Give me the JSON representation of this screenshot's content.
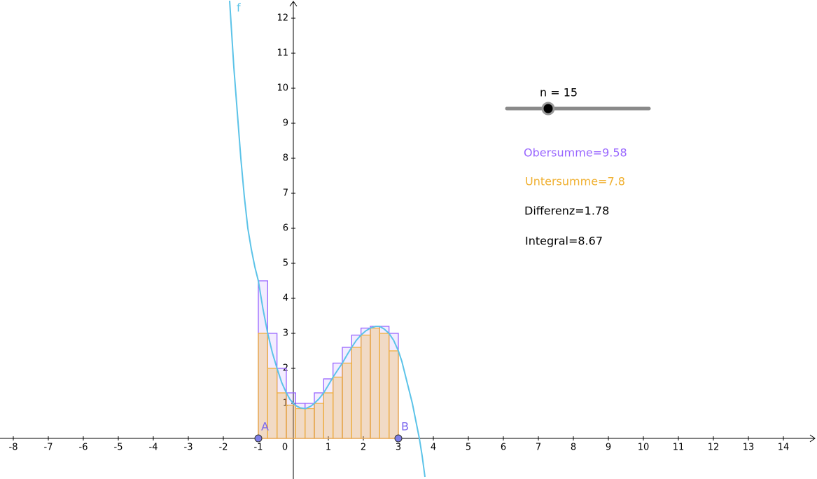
{
  "chart_data": {
    "type": "riemann",
    "xlim": [
      -8.38,
      14.96
    ],
    "ylim": [
      -1.16,
      12.52
    ],
    "xticks": [
      -8,
      -7,
      -6,
      -5,
      -4,
      -3,
      -2,
      -1,
      0,
      1,
      2,
      3,
      4,
      5,
      6,
      7,
      8,
      9,
      10,
      11,
      12,
      13,
      14
    ],
    "yticks": [
      1,
      2,
      3,
      4,
      5,
      6,
      7,
      8,
      9,
      10,
      11,
      12
    ],
    "function": {
      "name": "f",
      "color": "#5cc3e8",
      "x": [
        -1.82,
        -1.7,
        -1.6,
        -1.5,
        -1.4,
        -1.3,
        -1.2,
        -1.1,
        -1,
        -0.867,
        -0.733,
        -0.6,
        -0.467,
        -0.333,
        -0.2,
        -0.1,
        0,
        0.1,
        0.2,
        0.35,
        0.5,
        0.6,
        0.733,
        0.867,
        1,
        1.133,
        1.267,
        1.4,
        1.533,
        1.667,
        1.8,
        1.933,
        2.067,
        2.2,
        2.35,
        2.467,
        2.6,
        2.733,
        2.867,
        3,
        3.1,
        3.2,
        3.3,
        3.4,
        3.5,
        3.6,
        3.68,
        3.76
      ],
      "values": [
        12.5,
        10.6,
        9.3,
        8.0,
        6.9,
        6.0,
        5.4,
        4.9,
        4.5,
        3.7,
        3.0,
        2.45,
        2.0,
        1.6,
        1.3,
        1.12,
        1.0,
        0.92,
        0.87,
        0.85,
        0.92,
        1.0,
        1.13,
        1.3,
        1.52,
        1.75,
        1.95,
        2.15,
        2.38,
        2.6,
        2.8,
        2.95,
        3.07,
        3.15,
        3.2,
        3.2,
        3.12,
        3.0,
        2.8,
        2.5,
        2.2,
        1.8,
        1.4,
        1.0,
        0.5,
        0.0,
        -0.5,
        -1.1
      ]
    },
    "upper": {
      "color": "#9966ff",
      "values": [
        4.5,
        3.0,
        2.0,
        1.3,
        1.0,
        1.0,
        1.3,
        1.7,
        2.15,
        2.6,
        2.95,
        3.15,
        3.2,
        3.2,
        3.0
      ]
    },
    "lower": {
      "color": "#f0b040",
      "values": [
        3.0,
        2.0,
        1.3,
        0.95,
        0.85,
        0.85,
        1.0,
        1.3,
        1.75,
        2.15,
        2.6,
        2.95,
        3.15,
        3.0,
        2.5
      ]
    },
    "points": [
      {
        "name": "A",
        "x": -1
      },
      {
        "name": "B",
        "x": 3
      }
    ],
    "slider_label": "n = 15",
    "annotations": [
      {
        "text": "Obersumme=9.58",
        "color": "#9966ff"
      },
      {
        "text": "Untersumme=7.8",
        "color": "#f0b030"
      },
      {
        "text": "Differenz=1.78",
        "color": "#000000"
      },
      {
        "text": "Integral=8.67",
        "color": "#000000"
      }
    ]
  }
}
